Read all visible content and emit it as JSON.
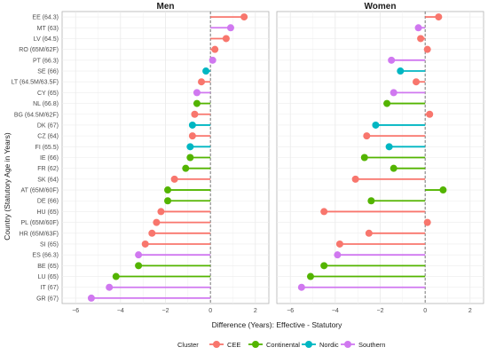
{
  "chart_data": {
    "type": "lollipop",
    "facets": [
      "Men",
      "Women"
    ],
    "xlabel": "Difference (Years): Effective - Statutory",
    "ylabel": "Country (Statutory Age in Years)",
    "xlim": [
      -6.6,
      2.6
    ],
    "xticks": [
      -6,
      -4,
      -2,
      0,
      2
    ],
    "xtick_labels": [
      "−6",
      "−4",
      "−2",
      "0",
      "2"
    ],
    "reference_line": 0,
    "grid": true,
    "legend": {
      "title": "Cluster",
      "position": "bottom",
      "entries": [
        "CEE",
        "Continental",
        "Nordic",
        "Southern"
      ]
    },
    "colors": {
      "CEE": "#F8766D",
      "Continental": "#53B400",
      "Nordic": "#00B6C2",
      "Southern": "#D078F0"
    },
    "categories": [
      "EE (64.3)",
      "MT (63)",
      "LV (64.5)",
      "RO (65M/62F)",
      "PT (66.3)",
      "SE (66)",
      "LT (64.5M/63.5F)",
      "CY (65)",
      "NL (66.8)",
      "BG (64.5M/62F)",
      "DK (67)",
      "CZ (64)",
      "FI (65.5)",
      "IE (66)",
      "FR (62)",
      "SK (64)",
      "AT (65M/60F)",
      "DE (66)",
      "HU (65)",
      "PL (65M/60F)",
      "HR (65M/63F)",
      "SI (65)",
      "ES (66.3)",
      "BE (65)",
      "LU (65)",
      "IT (67)",
      "GR (67)"
    ],
    "cluster": [
      "CEE",
      "Southern",
      "CEE",
      "CEE",
      "Southern",
      "Nordic",
      "CEE",
      "Southern",
      "Continental",
      "CEE",
      "Nordic",
      "CEE",
      "Nordic",
      "Continental",
      "Continental",
      "CEE",
      "Continental",
      "Continental",
      "CEE",
      "CEE",
      "CEE",
      "CEE",
      "Southern",
      "Continental",
      "Continental",
      "Southern",
      "Southern"
    ],
    "series": [
      {
        "name": "Men",
        "values": [
          1.5,
          0.9,
          0.7,
          0.2,
          0.1,
          -0.2,
          -0.4,
          -0.6,
          -0.6,
          -0.7,
          -0.8,
          -0.8,
          -0.9,
          -0.9,
          -1.1,
          -1.6,
          -1.9,
          -1.9,
          -2.2,
          -2.4,
          -2.6,
          -2.9,
          -3.2,
          -3.2,
          -4.2,
          -4.5,
          -5.3
        ]
      },
      {
        "name": "Women",
        "values": [
          0.6,
          -0.3,
          -0.2,
          0.1,
          -1.5,
          -1.1,
          -0.4,
          -1.4,
          -1.7,
          0.2,
          -2.2,
          -2.6,
          -1.6,
          -2.7,
          -1.4,
          -3.1,
          0.8,
          -2.4,
          -4.5,
          0.1,
          -2.5,
          -3.8,
          -3.9,
          -4.5,
          -5.1,
          -5.5,
          null
        ]
      }
    ]
  }
}
